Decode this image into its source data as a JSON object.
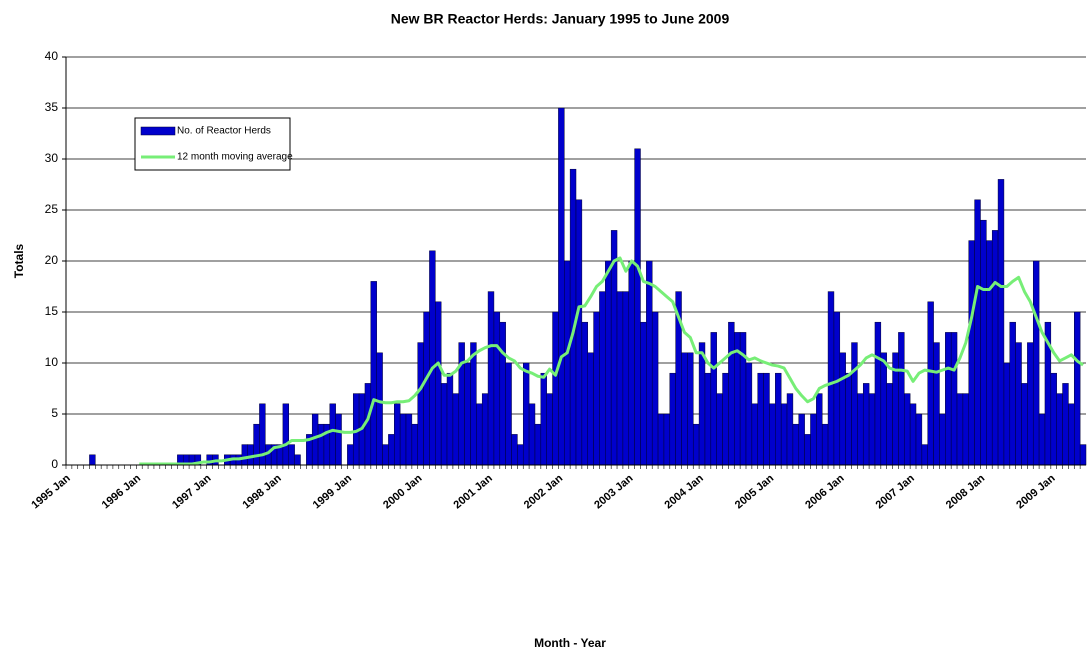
{
  "chart_data": {
    "type": "bar",
    "title": "New BR Reactor Herds: January 1995 to June 2009",
    "x_label": "Month - Year",
    "y_label": "Totals",
    "categories": [
      "1995 Jan",
      null,
      null,
      null,
      null,
      null,
      null,
      null,
      null,
      null,
      null,
      null,
      "1996 Jan",
      null,
      null,
      null,
      null,
      null,
      null,
      null,
      null,
      null,
      null,
      null,
      "1997 Jan",
      null,
      null,
      null,
      null,
      null,
      null,
      null,
      null,
      null,
      null,
      null,
      "1998 Jan",
      null,
      null,
      null,
      null,
      null,
      null,
      null,
      null,
      null,
      null,
      null,
      "1999 Jan",
      null,
      null,
      null,
      null,
      null,
      null,
      null,
      null,
      null,
      null,
      null,
      "2000 Jan",
      null,
      null,
      null,
      null,
      null,
      null,
      null,
      null,
      null,
      null,
      null,
      "2001 Jan",
      null,
      null,
      null,
      null,
      null,
      null,
      null,
      null,
      null,
      null,
      null,
      "2002 Jan",
      null,
      null,
      null,
      null,
      null,
      null,
      null,
      null,
      null,
      null,
      null,
      "2003 Jan",
      null,
      null,
      null,
      null,
      null,
      null,
      null,
      null,
      null,
      null,
      null,
      "2004 Jan",
      null,
      null,
      null,
      null,
      null,
      null,
      null,
      null,
      null,
      null,
      null,
      "2005 Jan",
      null,
      null,
      null,
      null,
      null,
      null,
      null,
      null,
      null,
      null,
      null,
      "2006 Jan",
      null,
      null,
      null,
      null,
      null,
      null,
      null,
      null,
      null,
      null,
      null,
      "2007 Jan",
      null,
      null,
      null,
      null,
      null,
      null,
      null,
      null,
      null,
      null,
      null,
      "2008 Jan",
      null,
      null,
      null,
      null,
      null,
      null,
      null,
      null,
      null,
      null,
      null,
      "2009 Jan",
      null,
      null,
      null,
      null,
      null
    ],
    "series": [
      {
        "name": "No. of Reactor Herds",
        "type": "bar",
        "color": "#0000cc",
        "values": [
          0,
          0,
          0,
          0,
          1,
          0,
          0,
          0,
          0,
          0,
          0,
          0,
          0,
          0,
          0,
          0,
          0,
          0,
          0,
          1,
          1,
          1,
          1,
          0,
          1,
          1,
          0,
          1,
          1,
          1,
          2,
          2,
          4,
          6,
          2,
          2,
          2,
          6,
          2,
          1,
          0,
          3,
          5,
          4,
          4,
          6,
          5,
          0,
          2,
          7,
          7,
          8,
          18,
          11,
          2,
          3,
          6,
          5,
          5,
          4,
          12,
          15,
          21,
          16,
          8,
          9,
          7,
          12,
          10,
          12,
          6,
          7,
          17,
          15,
          14,
          10,
          3,
          2,
          10,
          6,
          4,
          9,
          7,
          15,
          35,
          20,
          29,
          26,
          14,
          11,
          15,
          17,
          20,
          23,
          17,
          17,
          20,
          31,
          14,
          20,
          15,
          5,
          5,
          9,
          17,
          11,
          11,
          4,
          12,
          9,
          13,
          7,
          9,
          14,
          13,
          13,
          10,
          6,
          9,
          9,
          6,
          9,
          6,
          7,
          4,
          5,
          3,
          5,
          7,
          4,
          17,
          15,
          11,
          9,
          12,
          7,
          8,
          7,
          14,
          11,
          8,
          11,
          13,
          7,
          6,
          5,
          2,
          16,
          12,
          5,
          13,
          13,
          7,
          7,
          22,
          26,
          24,
          22,
          23,
          28,
          10,
          14,
          12,
          8,
          12,
          20,
          5,
          14,
          9,
          7,
          8,
          6,
          15,
          2
        ]
      },
      {
        "name": "12 month moving average",
        "type": "line",
        "color": "#77ee77",
        "values": [
          null,
          null,
          null,
          null,
          null,
          null,
          null,
          null,
          null,
          null,
          null,
          null,
          0.1,
          0.1,
          0.1,
          0.1,
          0.1,
          0.1,
          0.1,
          0.1,
          0.1,
          0.1,
          0.2,
          0.3,
          0.3,
          0.4,
          0.4,
          0.5,
          0.6,
          0.6,
          0.7,
          0.8,
          0.9,
          1.0,
          1.2,
          1.7,
          1.8,
          2.0,
          2.4,
          2.4,
          2.4,
          2.5,
          2.7,
          2.9,
          3.2,
          3.4,
          3.3,
          3.2,
          3.2,
          3.3,
          3.6,
          4.5,
          6.4,
          6.2,
          6.1,
          6.1,
          6.2,
          6.2,
          6.3,
          6.8,
          7.5,
          8.5,
          9.5,
          10.0,
          8.8,
          8.8,
          9.2,
          10.0,
          10.2,
          10.8,
          11.2,
          11.5,
          11.7,
          11.7,
          11.0,
          10.5,
          10.2,
          9.5,
          9.2,
          9.0,
          8.7,
          8.6,
          9.4,
          8.8,
          10.6,
          11.0,
          13.0,
          15.5,
          15.6,
          16.5,
          17.5,
          18.0,
          19.0,
          20.0,
          20.3,
          19.0,
          20.0,
          19.5,
          18.0,
          17.8,
          17.5,
          17.0,
          16.5,
          16.0,
          14.5,
          13.0,
          12.5,
          11.0,
          11.0,
          10.0,
          9.5,
          10.0,
          10.5,
          11.0,
          11.2,
          10.8,
          10.3,
          10.5,
          10.2,
          10.0,
          9.8,
          9.7,
          9.5,
          8.5,
          7.5,
          6.8,
          6.2,
          6.5,
          7.5,
          7.8,
          8.0,
          8.2,
          8.5,
          8.8,
          9.3,
          9.8,
          10.5,
          10.8,
          10.5,
          10.2,
          9.5,
          9.3,
          9.3,
          9.2,
          8.2,
          9.0,
          9.3,
          9.2,
          9.1,
          9.3,
          9.5,
          9.3,
          10.5,
          12.0,
          14.5,
          17.5,
          17.2,
          17.2,
          17.9,
          17.5,
          17.5,
          18.0,
          18.4,
          17.0,
          16.0,
          14.5,
          13.0,
          12.0,
          11.0,
          10.2,
          10.5,
          10.8,
          10.2,
          9.8
        ]
      }
    ],
    "ylim": [
      0,
      40
    ],
    "yticks": [
      0,
      5,
      10,
      15,
      20,
      25,
      30,
      35,
      40
    ],
    "grid": true,
    "legend": "upper-left"
  }
}
